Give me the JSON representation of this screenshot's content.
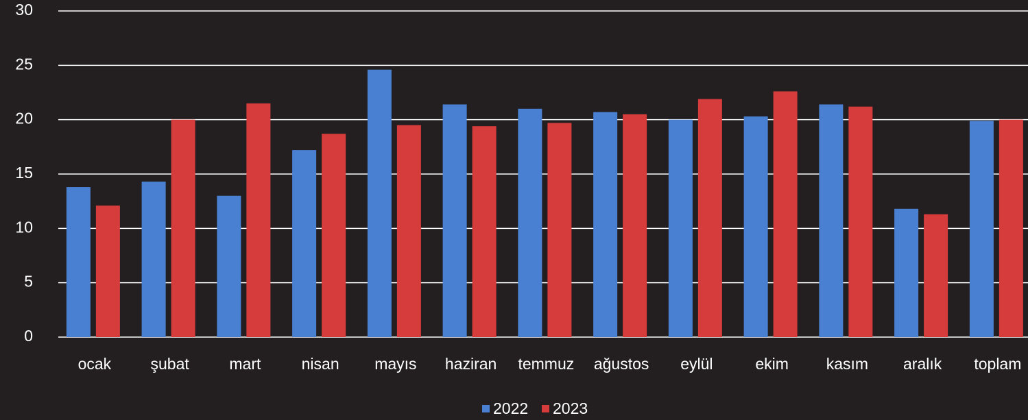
{
  "chart_data": {
    "type": "bar",
    "categories": [
      "ocak",
      "şubat",
      "mart",
      "nisan",
      "mayıs",
      "haziran",
      "temmuz",
      "ağustos",
      "eylül",
      "ekim",
      "kasım",
      "aralık",
      "toplam"
    ],
    "series": [
      {
        "name": "2022",
        "color": "#4a80d2",
        "values": [
          13.8,
          14.3,
          13.0,
          17.2,
          24.6,
          21.4,
          21.0,
          20.7,
          20.0,
          20.3,
          21.4,
          11.8,
          19.9
        ]
      },
      {
        "name": "2023",
        "color": "#d63c3c",
        "values": [
          12.1,
          20.0,
          21.5,
          18.7,
          19.5,
          19.4,
          19.7,
          20.5,
          21.9,
          22.6,
          21.2,
          11.3,
          20.0
        ]
      }
    ],
    "ylim": [
      0,
      30
    ],
    "yticks": [
      0,
      5,
      10,
      15,
      20,
      25,
      30
    ],
    "grid": true,
    "legend": "bottom"
  }
}
